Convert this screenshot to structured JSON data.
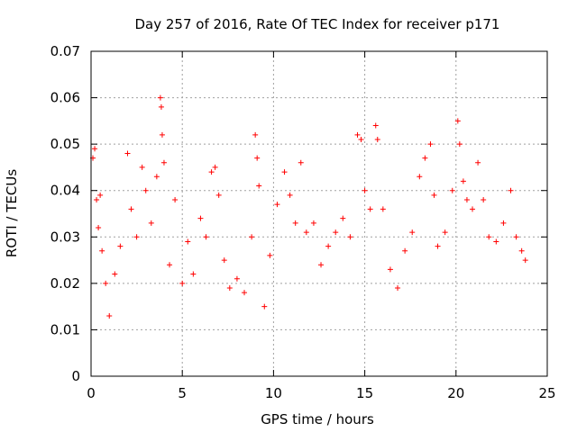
{
  "chart_data": {
    "type": "scatter",
    "title": "Day 257 of 2016, Rate Of TEC Index for receiver p171",
    "xlabel": "GPS time / hours",
    "ylabel": "ROTI / TECUs",
    "xlim": [
      0,
      25
    ],
    "ylim": [
      0,
      0.07
    ],
    "xticks": [
      0,
      5,
      10,
      15,
      20,
      25
    ],
    "xtick_labels": [
      "0",
      "5",
      "10",
      "15",
      "20",
      "25"
    ],
    "yticks": [
      0,
      0.01,
      0.02,
      0.03,
      0.04,
      0.05,
      0.06,
      0.07
    ],
    "ytick_labels": [
      "0",
      "0.01",
      "0.02",
      "0.03",
      "0.04",
      "0.05",
      "0.06",
      "0.07"
    ],
    "grid": true,
    "marker": "+",
    "marker_color": "#ff0000",
    "series": [
      {
        "name": "ROTI",
        "x": [
          0.1,
          0.2,
          0.3,
          0.4,
          0.5,
          0.6,
          0.8,
          1.0,
          1.3,
          1.6,
          2.0,
          2.2,
          2.5,
          2.8,
          3.0,
          3.3,
          3.6,
          3.8,
          3.85,
          3.9,
          4.0,
          4.3,
          4.6,
          5.0,
          5.3,
          5.6,
          6.0,
          6.3,
          6.6,
          6.8,
          7.0,
          7.3,
          7.6,
          8.0,
          8.4,
          8.8,
          9.0,
          9.1,
          9.2,
          9.5,
          9.8,
          10.2,
          10.6,
          10.9,
          11.2,
          11.5,
          11.8,
          12.2,
          12.6,
          13.0,
          13.4,
          13.8,
          14.2,
          14.6,
          14.8,
          15.0,
          15.3,
          15.6,
          15.7,
          16.0,
          16.4,
          16.8,
          17.2,
          17.6,
          18.0,
          18.3,
          18.6,
          18.8,
          19.0,
          19.4,
          19.8,
          20.1,
          20.2,
          20.4,
          20.6,
          20.9,
          21.2,
          21.5,
          21.8,
          22.2,
          22.6,
          23.0,
          23.3,
          23.6,
          23.8
        ],
        "y": [
          0.047,
          0.049,
          0.038,
          0.032,
          0.039,
          0.027,
          0.02,
          0.013,
          0.022,
          0.028,
          0.048,
          0.036,
          0.03,
          0.045,
          0.04,
          0.033,
          0.043,
          0.06,
          0.058,
          0.052,
          0.046,
          0.024,
          0.038,
          0.02,
          0.029,
          0.022,
          0.034,
          0.03,
          0.044,
          0.045,
          0.039,
          0.025,
          0.019,
          0.021,
          0.018,
          0.03,
          0.052,
          0.047,
          0.041,
          0.015,
          0.026,
          0.037,
          0.044,
          0.039,
          0.033,
          0.046,
          0.031,
          0.033,
          0.024,
          0.028,
          0.031,
          0.034,
          0.03,
          0.052,
          0.051,
          0.04,
          0.036,
          0.054,
          0.051,
          0.036,
          0.023,
          0.019,
          0.027,
          0.031,
          0.043,
          0.047,
          0.05,
          0.039,
          0.028,
          0.031,
          0.04,
          0.055,
          0.05,
          0.042,
          0.038,
          0.036,
          0.046,
          0.038,
          0.03,
          0.029,
          0.033,
          0.04,
          0.03,
          0.027,
          0.025
        ]
      }
    ]
  }
}
